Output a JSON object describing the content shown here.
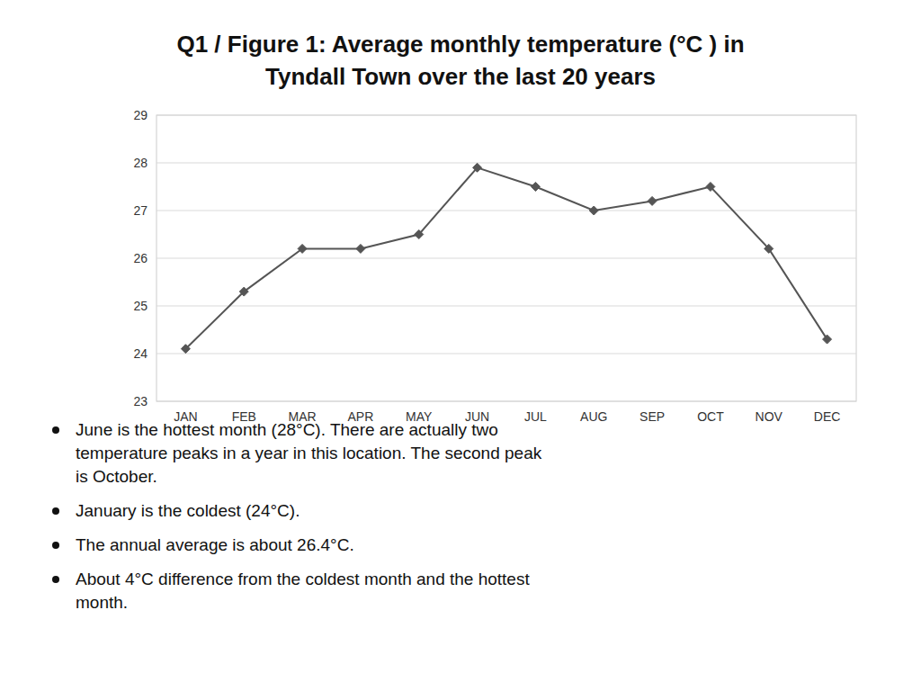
{
  "chart_data": {
    "type": "line",
    "title": [
      "Q1 / Figure 1: Average monthly temperature (°C ) in",
      "Tyndall Town over the last 20 years"
    ],
    "categories": [
      "JAN",
      "FEB",
      "MAR",
      "APR",
      "MAY",
      "JUN",
      "JUL",
      "AUG",
      "SEP",
      "OCT",
      "NOV",
      "DEC"
    ],
    "values": [
      24.1,
      25.3,
      26.2,
      26.2,
      26.5,
      27.9,
      27.5,
      27.0,
      27.2,
      27.5,
      26.2,
      24.3
    ],
    "color": "#555555",
    "marker": "diamond",
    "ylim": [
      23,
      29
    ],
    "yticks": [
      23,
      24,
      25,
      26,
      27,
      28,
      29
    ],
    "grid": true,
    "annotations": [
      "June is the hottest month (28°C). There are actually two\ntemperature peaks in a year in this location. The second peak\nis October.",
      "January is the coldest (24°C).",
      "The annual average is about 26.4°C.",
      "About 4°C difference from the coldest month and the hottest\nmonth."
    ]
  }
}
